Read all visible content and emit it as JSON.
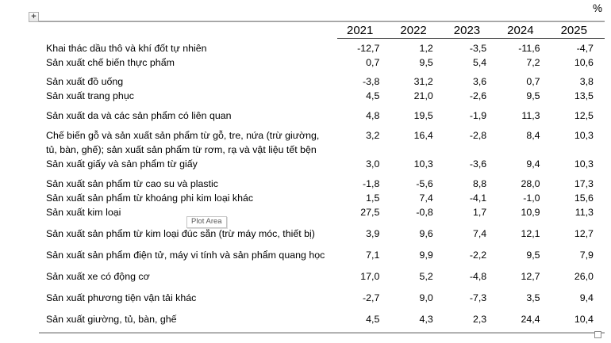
{
  "unit_label": "%",
  "outline_button": {
    "label": "+"
  },
  "tooltip": {
    "text": "Plot Area"
  },
  "colors": {
    "text": "#000000",
    "border_line": "#a3a3a3",
    "header_rule": "#4d4d4d",
    "tooltip_text": "#595959",
    "tooltip_border": "#c3c3c3"
  },
  "chart_data": {
    "type": "table",
    "unit": "%",
    "columns": [
      "2021",
      "2022",
      "2023",
      "2024",
      "2025"
    ],
    "rows": [
      {
        "label": "Khai thác dầu thô và khí đốt tự nhiên",
        "values": [
          "-12,7",
          "1,2",
          "-3,5",
          "-11,6",
          "-4,7"
        ]
      },
      {
        "label": "Sản xuất chế biến thực phẩm",
        "values": [
          "0,7",
          "9,5",
          "5,4",
          "7,2",
          "10,6"
        ]
      },
      {
        "label": "Sản xuất đồ uống",
        "values": [
          "-3,8",
          "31,2",
          "3,6",
          "0,7",
          "3,8"
        ]
      },
      {
        "label": "Sản xuất trang phục",
        "values": [
          "4,5",
          "21,0",
          "-2,6",
          "9,5",
          "13,5"
        ]
      },
      {
        "label": "Sản xuất da và các sản phẩm có liên quan",
        "values": [
          "4,8",
          "19,5",
          "-1,9",
          "11,3",
          "12,5"
        ]
      },
      {
        "label": "Chế biến gỗ và sản xuất sản phẩm từ gỗ, tre, nứa (trừ giường, tủ, bàn, ghế); sản xuất sản phẩm từ rơm, rạ và vật liệu tết bện",
        "values": [
          "3,2",
          "16,4",
          "-2,8",
          "8,4",
          "10,3"
        ]
      },
      {
        "label": "Sản xuất giấy và sản phẩm từ giấy",
        "values": [
          "3,0",
          "10,3",
          "-3,6",
          "9,4",
          "10,3"
        ]
      },
      {
        "label": "Sản xuất sản phẩm từ cao su và plastic",
        "values": [
          "-1,8",
          "-5,6",
          "8,8",
          "28,0",
          "17,3"
        ]
      },
      {
        "label": "Sản xuất sản phẩm từ khoáng phi kim loại khác",
        "values": [
          "1,5",
          "7,4",
          "-4,1",
          "-1,0",
          "15,6"
        ]
      },
      {
        "label": "Sản xuất kim loại",
        "values": [
          "27,5",
          "-0,8",
          "1,7",
          "10,9",
          "11,3"
        ]
      },
      {
        "label": "Sản xuất sản phẩm từ kim loại đúc sẵn (trừ máy móc, thiết bị)",
        "values": [
          "3,9",
          "9,6",
          "7,4",
          "12,1",
          "12,7"
        ]
      },
      {
        "label": "Sản xuất sản phẩm điện tử, máy vi tính và sản phẩm quang học",
        "values": [
          "7,1",
          "9,9",
          "-2,2",
          "9,5",
          "7,9"
        ]
      },
      {
        "label": "Sản xuất xe có động cơ",
        "values": [
          "17,0",
          "5,2",
          "-4,8",
          "12,7",
          "26,0"
        ]
      },
      {
        "label": "Sản xuất phương tiện vận tải khác",
        "values": [
          "-2,7",
          "9,0",
          "-7,3",
          "3,5",
          "9,4"
        ]
      },
      {
        "label": "Sản xuất giường, tủ, bàn, ghế",
        "values": [
          "4,5",
          "4,3",
          "2,3",
          "24,4",
          "10,4"
        ]
      }
    ]
  }
}
